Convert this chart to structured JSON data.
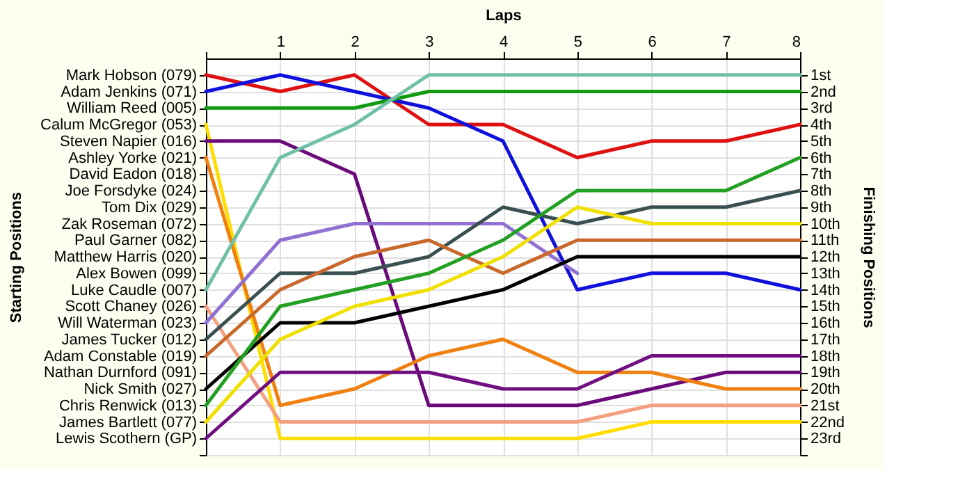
{
  "chart_data": {
    "type": "line",
    "xlabel": "Laps",
    "y2label": "Finishing Positions",
    "x": [
      0,
      1,
      2,
      3,
      4,
      5,
      6,
      7,
      8
    ],
    "xlim": [
      0,
      8
    ],
    "xticks": [
      {
        "value": 0,
        "label": null
      },
      1,
      2,
      3,
      4,
      5,
      6,
      7,
      8
    ],
    "annotations": [
      "Starting Positions",
      "Mark Hobson (079)",
      "Adam Jenkins (071)",
      "William Reed (005)",
      "Calum McGregor (053)",
      "Steven Napier (016)",
      "Ashley Yorke (021)",
      "David Eadon (018)",
      "Joe Forsdyke (024)",
      "Tom Dix (029)",
      "Zak Roseman (072)",
      "Paul Garner (082)",
      "Matthew Harris (020)",
      "Alex Bowen (099)",
      "Luke Caudle (007)",
      "Scott Chaney (026)",
      "Will Waterman (023)",
      "James Tucker (012)",
      "Adam Constable (019)",
      "Nathan Durnford (091)",
      "Nick Smith (027)",
      "Chris Renwick (013)",
      "James Bartlett (077)",
      "Lewis Scothern (GP)"
    ],
    "y2lim": [
      24,
      0
    ],
    "y2ticks": [
      {
        "value": 1,
        "label": "1st"
      },
      {
        "value": 2,
        "label": "2nd"
      },
      {
        "value": 3,
        "label": "3rd"
      },
      {
        "value": 4,
        "label": "4th"
      },
      {
        "value": 5,
        "label": "5th"
      },
      {
        "value": 6,
        "label": "6th"
      },
      {
        "value": 7,
        "label": "7th"
      },
      {
        "value": 8,
        "label": "8th"
      },
      {
        "value": 9,
        "label": "9th"
      },
      {
        "value": 10,
        "label": "10th"
      },
      {
        "value": 11,
        "label": "11th"
      },
      {
        "value": 12,
        "label": "12th"
      },
      {
        "value": 13,
        "label": "13th"
      },
      {
        "value": 14,
        "label": "14th"
      },
      {
        "value": 15,
        "label": "15th"
      },
      {
        "value": 16,
        "label": "16th"
      },
      {
        "value": 17,
        "label": "17th"
      },
      {
        "value": 18,
        "label": "18th"
      },
      {
        "value": 19,
        "label": "19th"
      },
      {
        "value": 20,
        "label": "20th"
      },
      {
        "value": 21,
        "label": "21st"
      },
      {
        "value": 22,
        "label": "22nd"
      },
      {
        "value": 23,
        "label": "23rd"
      },
      {
        "value": 24,
        "label": null
      }
    ],
    "grid": true,
    "legend": false,
    "marker": "none",
    "line_style": "solid",
    "series": [
      {
        "axis": "y2",
        "color": "#dd1111",
        "values": [
          1,
          2,
          1,
          4,
          4,
          6,
          5,
          5,
          4
        ]
      },
      {
        "axis": "y2",
        "color": "#1010dd",
        "values": [
          2,
          1,
          2,
          3,
          5,
          14,
          13,
          13,
          14
        ]
      },
      {
        "axis": "y2",
        "color": "#119911",
        "values": [
          3,
          3,
          3,
          2,
          2,
          2,
          2,
          2,
          2
        ]
      },
      {
        "axis": "y2",
        "color": "#ffdd00",
        "values": [
          4,
          23,
          23,
          23,
          23,
          23,
          22,
          22,
          22
        ]
      },
      {
        "axis": "y2",
        "color": "#6a0a7a",
        "values": [
          5,
          5,
          7,
          21,
          21,
          21,
          20,
          19,
          19
        ]
      },
      {
        "axis": "y2",
        "color": "#f08010",
        "values": [
          6,
          21,
          20,
          18,
          17,
          19,
          19,
          20,
          20
        ]
      },
      {
        "axis": "y2",
        "color": "#70c0a8",
        "values": [
          14,
          6,
          4,
          1,
          1,
          1,
          1,
          1,
          1
        ]
      },
      {
        "axis": "y2",
        "color": "#f4a080",
        "values": [
          15,
          22,
          22,
          22,
          22,
          22,
          21,
          21,
          21
        ]
      },
      {
        "axis": "y2",
        "color": "#9070d0",
        "values": [
          16,
          11,
          10,
          10,
          10,
          13,
          null,
          null,
          null
        ]
      },
      {
        "axis": "y2",
        "color": "#3a5050",
        "values": [
          17,
          13,
          13,
          12,
          9,
          10,
          9,
          9,
          8
        ]
      },
      {
        "axis": "y2",
        "color": "#c8682a",
        "values": [
          18,
          14,
          12,
          11,
          13,
          11,
          11,
          11,
          11
        ]
      },
      {
        "axis": "y2",
        "color": "#000000",
        "values": [
          20,
          16,
          16,
          15,
          14,
          12,
          12,
          12,
          12
        ]
      },
      {
        "axis": "y2",
        "color": "#22a022",
        "values": [
          21,
          15,
          14,
          13,
          11,
          8,
          8,
          8,
          6
        ]
      },
      {
        "axis": "y2",
        "color": "#f0e000",
        "values": [
          22,
          17,
          15,
          14,
          12,
          9,
          10,
          10,
          10
        ]
      },
      {
        "axis": "y2",
        "color": "#701080",
        "values": [
          23,
          19,
          19,
          19,
          20,
          20,
          18,
          18,
          18
        ]
      }
    ]
  }
}
